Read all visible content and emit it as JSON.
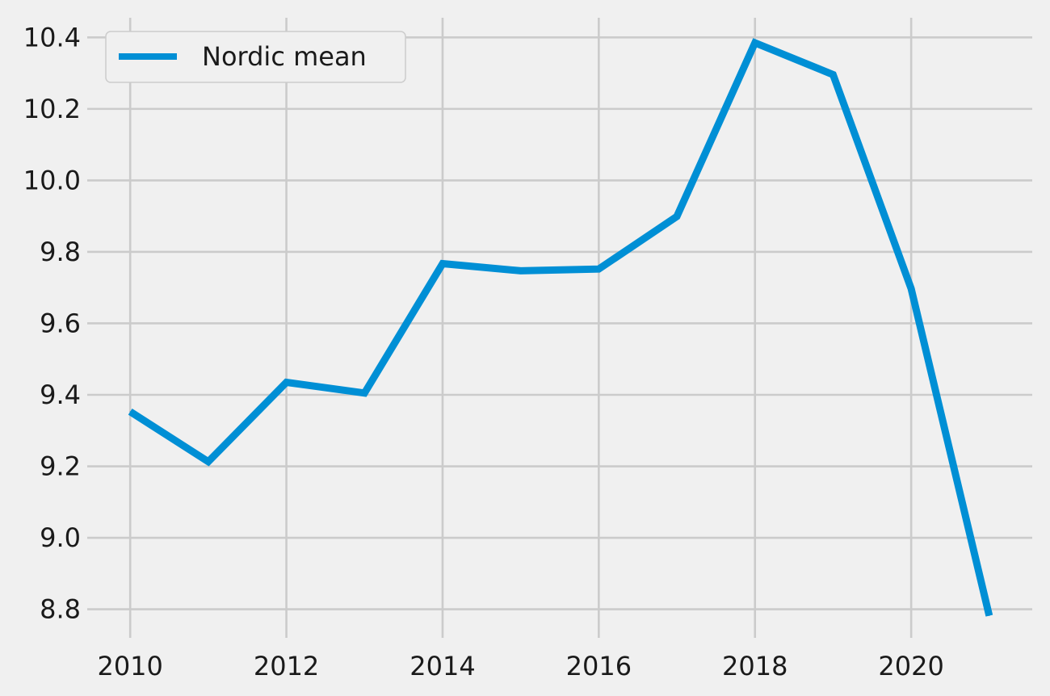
{
  "chart_data": {
    "type": "line",
    "title": "",
    "xlabel": "",
    "ylabel": "",
    "x": [
      2010,
      2011,
      2012,
      2013,
      2014,
      2015,
      2016,
      2017,
      2018,
      2019,
      2020,
      2021
    ],
    "series": [
      {
        "name": "Nordic mean",
        "color": "#008fd5",
        "values": [
          9.353,
          9.213,
          9.435,
          9.405,
          9.767,
          9.747,
          9.752,
          9.899,
          10.385,
          10.296,
          9.697,
          8.782
        ]
      }
    ],
    "xlim": [
      2009.45,
      2021.55
    ],
    "ylim": [
      8.72,
      10.455
    ],
    "x_ticks": [
      2010,
      2012,
      2014,
      2016,
      2018,
      2020
    ],
    "x_tick_labels": [
      "2010",
      "2012",
      "2014",
      "2016",
      "2018",
      "2020"
    ],
    "y_ticks": [
      8.8,
      9.0,
      9.2,
      9.4,
      9.6,
      9.8,
      10.0,
      10.2,
      10.4
    ],
    "y_tick_labels": [
      "8.8",
      "9.0",
      "9.2",
      "9.4",
      "9.6",
      "9.8",
      "10.0",
      "10.2",
      "10.4"
    ],
    "grid": true,
    "legend_position": "top-left",
    "background": "#f0f0f0"
  }
}
